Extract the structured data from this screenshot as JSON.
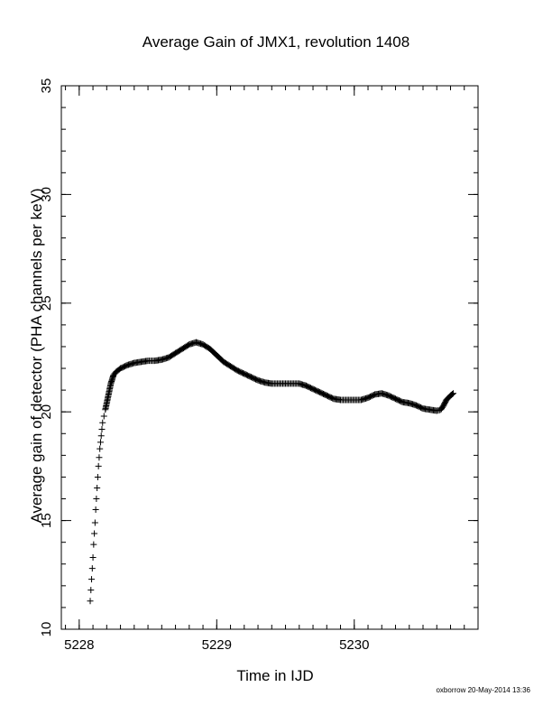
{
  "chart_data": {
    "type": "scatter",
    "title": "Average Gain of JMX1, revolution 1408",
    "xlabel": "Time in IJD",
    "ylabel": "Average gain of detector (PHA channels per keV)",
    "xlim": [
      5227.87,
      5230.9
    ],
    "ylim": [
      10,
      35
    ],
    "xticks": [
      5228,
      5229,
      5230
    ],
    "yticks": [
      10,
      15,
      20,
      25,
      30,
      35
    ],
    "marker": "plus",
    "grid": false,
    "legend": "none",
    "points": [
      [
        5228.08,
        11.3
      ],
      [
        5228.085,
        11.8
      ],
      [
        5228.09,
        12.3
      ],
      [
        5228.095,
        12.8
      ],
      [
        5228.1,
        13.3
      ],
      [
        5228.105,
        13.9
      ],
      [
        5228.11,
        14.4
      ],
      [
        5228.115,
        14.9
      ],
      [
        5228.12,
        15.5
      ],
      [
        5228.125,
        16.0
      ],
      [
        5228.13,
        16.5
      ],
      [
        5228.135,
        17.0
      ],
      [
        5228.14,
        17.5
      ],
      [
        5228.145,
        17.9
      ],
      [
        5228.15,
        18.3
      ],
      [
        5228.155,
        18.6
      ],
      [
        5228.16,
        18.9
      ],
      [
        5228.165,
        19.2
      ],
      [
        5228.17,
        19.5
      ],
      [
        5228.18,
        19.8
      ],
      [
        5228.19,
        20.1
      ],
      [
        5228.2,
        20.4
      ],
      [
        5228.21,
        20.7
      ],
      [
        5228.22,
        21.0
      ],
      [
        5228.23,
        21.3
      ],
      [
        5228.24,
        21.5
      ],
      [
        5228.25,
        21.7
      ],
      [
        5228.27,
        21.85
      ],
      [
        5228.3,
        22.0
      ],
      [
        5228.35,
        22.15
      ],
      [
        5228.4,
        22.25
      ],
      [
        5228.45,
        22.3
      ],
      [
        5228.5,
        22.35
      ],
      [
        5228.55,
        22.35
      ],
      [
        5228.6,
        22.4
      ],
      [
        5228.65,
        22.5
      ],
      [
        5228.7,
        22.7
      ],
      [
        5228.75,
        22.9
      ],
      [
        5228.8,
        23.1
      ],
      [
        5228.85,
        23.2
      ],
      [
        5228.9,
        23.1
      ],
      [
        5228.95,
        22.9
      ],
      [
        5229.0,
        22.6
      ],
      [
        5229.05,
        22.3
      ],
      [
        5229.1,
        22.1
      ],
      [
        5229.15,
        21.9
      ],
      [
        5229.2,
        21.75
      ],
      [
        5229.25,
        21.6
      ],
      [
        5229.3,
        21.45
      ],
      [
        5229.35,
        21.35
      ],
      [
        5229.4,
        21.3
      ],
      [
        5229.45,
        21.3
      ],
      [
        5229.5,
        21.3
      ],
      [
        5229.55,
        21.3
      ],
      [
        5229.6,
        21.3
      ],
      [
        5229.65,
        21.2
      ],
      [
        5229.7,
        21.05
      ],
      [
        5229.75,
        20.9
      ],
      [
        5229.8,
        20.75
      ],
      [
        5229.85,
        20.6
      ],
      [
        5229.9,
        20.55
      ],
      [
        5229.95,
        20.55
      ],
      [
        5230.0,
        20.55
      ],
      [
        5230.05,
        20.55
      ],
      [
        5230.1,
        20.65
      ],
      [
        5230.15,
        20.8
      ],
      [
        5230.2,
        20.85
      ],
      [
        5230.25,
        20.75
      ],
      [
        5230.3,
        20.6
      ],
      [
        5230.35,
        20.45
      ],
      [
        5230.4,
        20.4
      ],
      [
        5230.45,
        20.3
      ],
      [
        5230.5,
        20.15
      ],
      [
        5230.55,
        20.1
      ],
      [
        5230.6,
        20.05
      ],
      [
        5230.63,
        20.1
      ],
      [
        5230.65,
        20.3
      ],
      [
        5230.67,
        20.55
      ],
      [
        5230.7,
        20.75
      ],
      [
        5230.72,
        20.85
      ]
    ]
  },
  "footer": "oxborrow 20-May-2014 13:36"
}
